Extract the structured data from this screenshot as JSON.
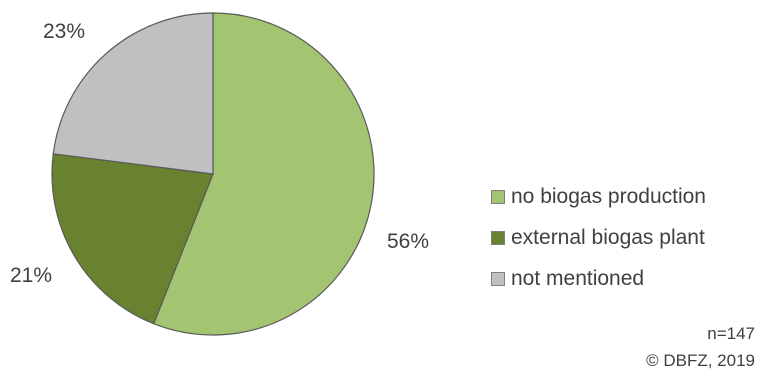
{
  "chart_data": {
    "type": "pie",
    "categories": [
      "no biogas production",
      "external biogas plant",
      "not mentioned"
    ],
    "values": [
      56,
      21,
      23
    ],
    "labels": [
      "56%",
      "21%",
      "23%"
    ],
    "colors": [
      "#a3c571",
      "#68822f",
      "#c0c0c0"
    ],
    "legend_position": "right",
    "start_angle": "12 o'clock",
    "direction": "clockwise"
  },
  "notes": {
    "sample_size": "n=147",
    "source": "© DBFZ, 2019"
  }
}
